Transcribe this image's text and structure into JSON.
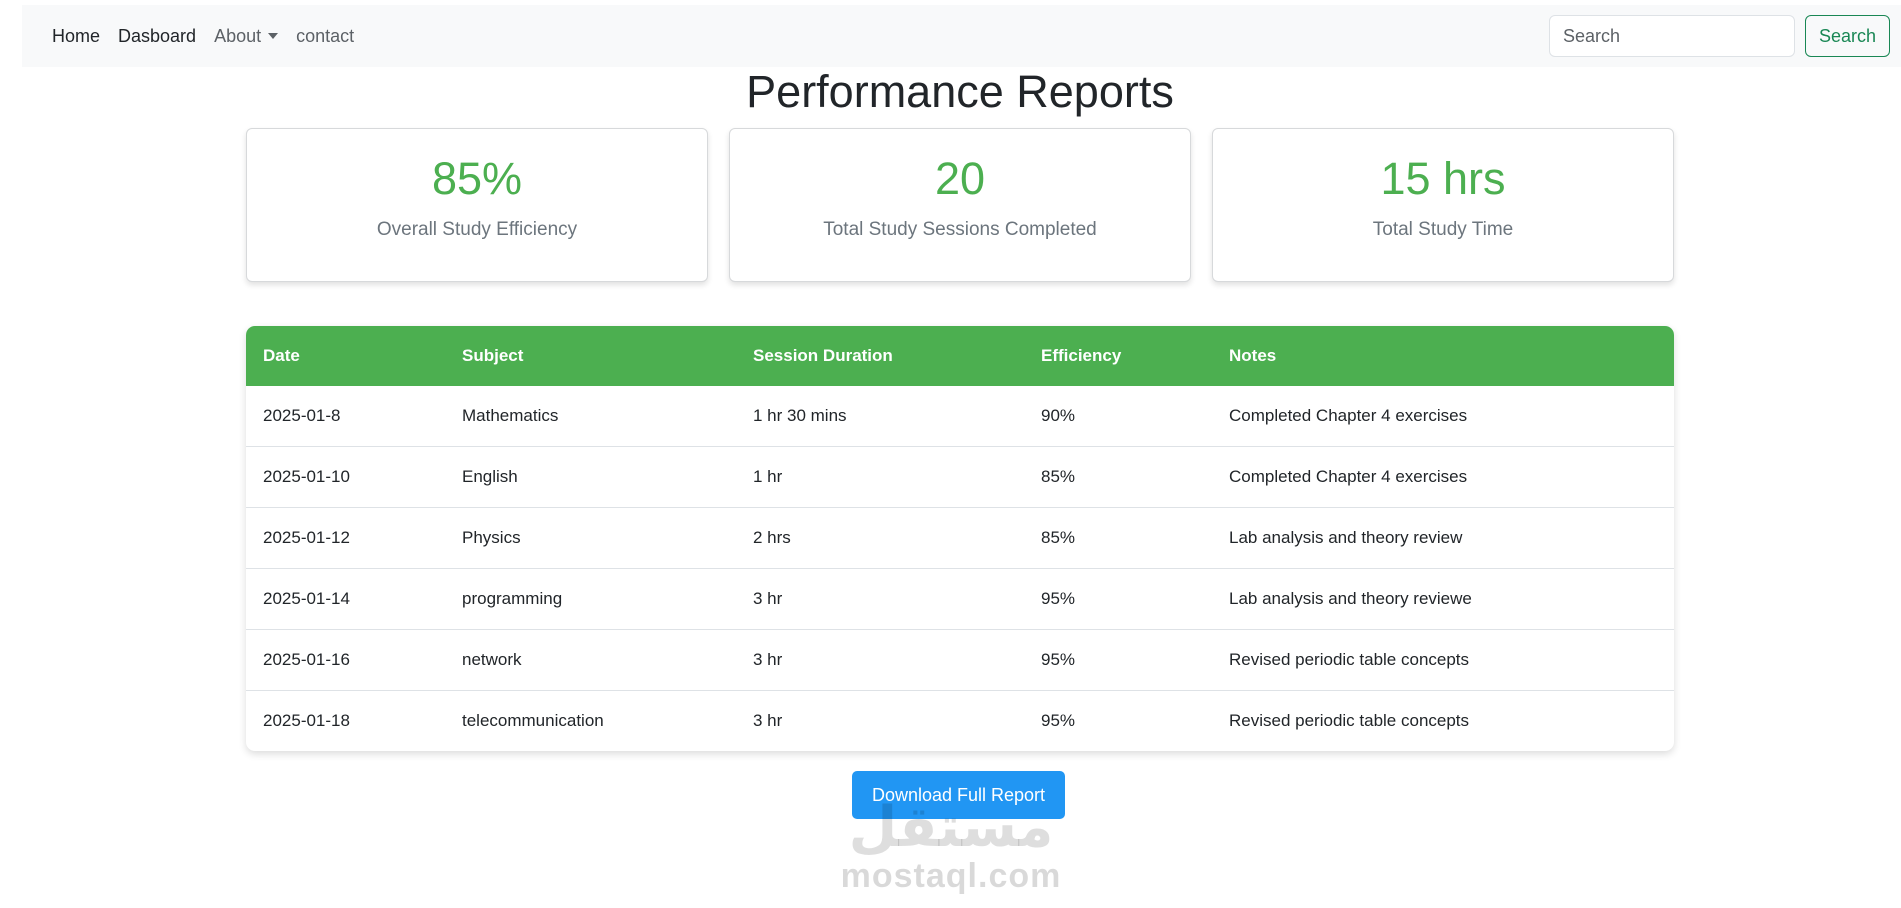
{
  "nav": {
    "links": [
      "Home",
      "Dasboard",
      "About",
      "contact"
    ],
    "search_placeholder": "Search",
    "search_button": "Search"
  },
  "page": {
    "title": "Performance Reports"
  },
  "stats": [
    {
      "value": "85%",
      "label": "Overall Study Efficiency"
    },
    {
      "value": "20",
      "label": "Total Study Sessions Completed"
    },
    {
      "value": "15 hrs",
      "label": "Total Study Time"
    }
  ],
  "table": {
    "headers": [
      "Date",
      "Subject",
      "Session Duration",
      "Efficiency",
      "Notes"
    ],
    "rows": [
      [
        "2025-01-8",
        "Mathematics",
        "1 hr 30 mins",
        "90%",
        "Completed Chapter 4 exercises"
      ],
      [
        "2025-01-10",
        "English",
        "1 hr",
        "85%",
        "Completed Chapter 4 exercises"
      ],
      [
        "2025-01-12",
        "Physics",
        "2 hrs",
        "85%",
        "Lab analysis and theory review"
      ],
      [
        "2025-01-14",
        "programming",
        "3 hr",
        "95%",
        "Lab analysis and theory reviewe"
      ],
      [
        "2025-01-16",
        "network",
        "3 hr",
        "95%",
        "Revised periodic table concepts"
      ],
      [
        "2025-01-18",
        "telecommunication",
        "3 hr",
        "95%",
        "Revised periodic table concepts"
      ]
    ]
  },
  "download_button": "Download Full Report",
  "watermark": {
    "arabic": "مستقل",
    "latin": "mostaql.com"
  },
  "colors": {
    "accent_green": "#4caf50",
    "outline_green": "#198754",
    "button_blue": "#2196f3"
  }
}
